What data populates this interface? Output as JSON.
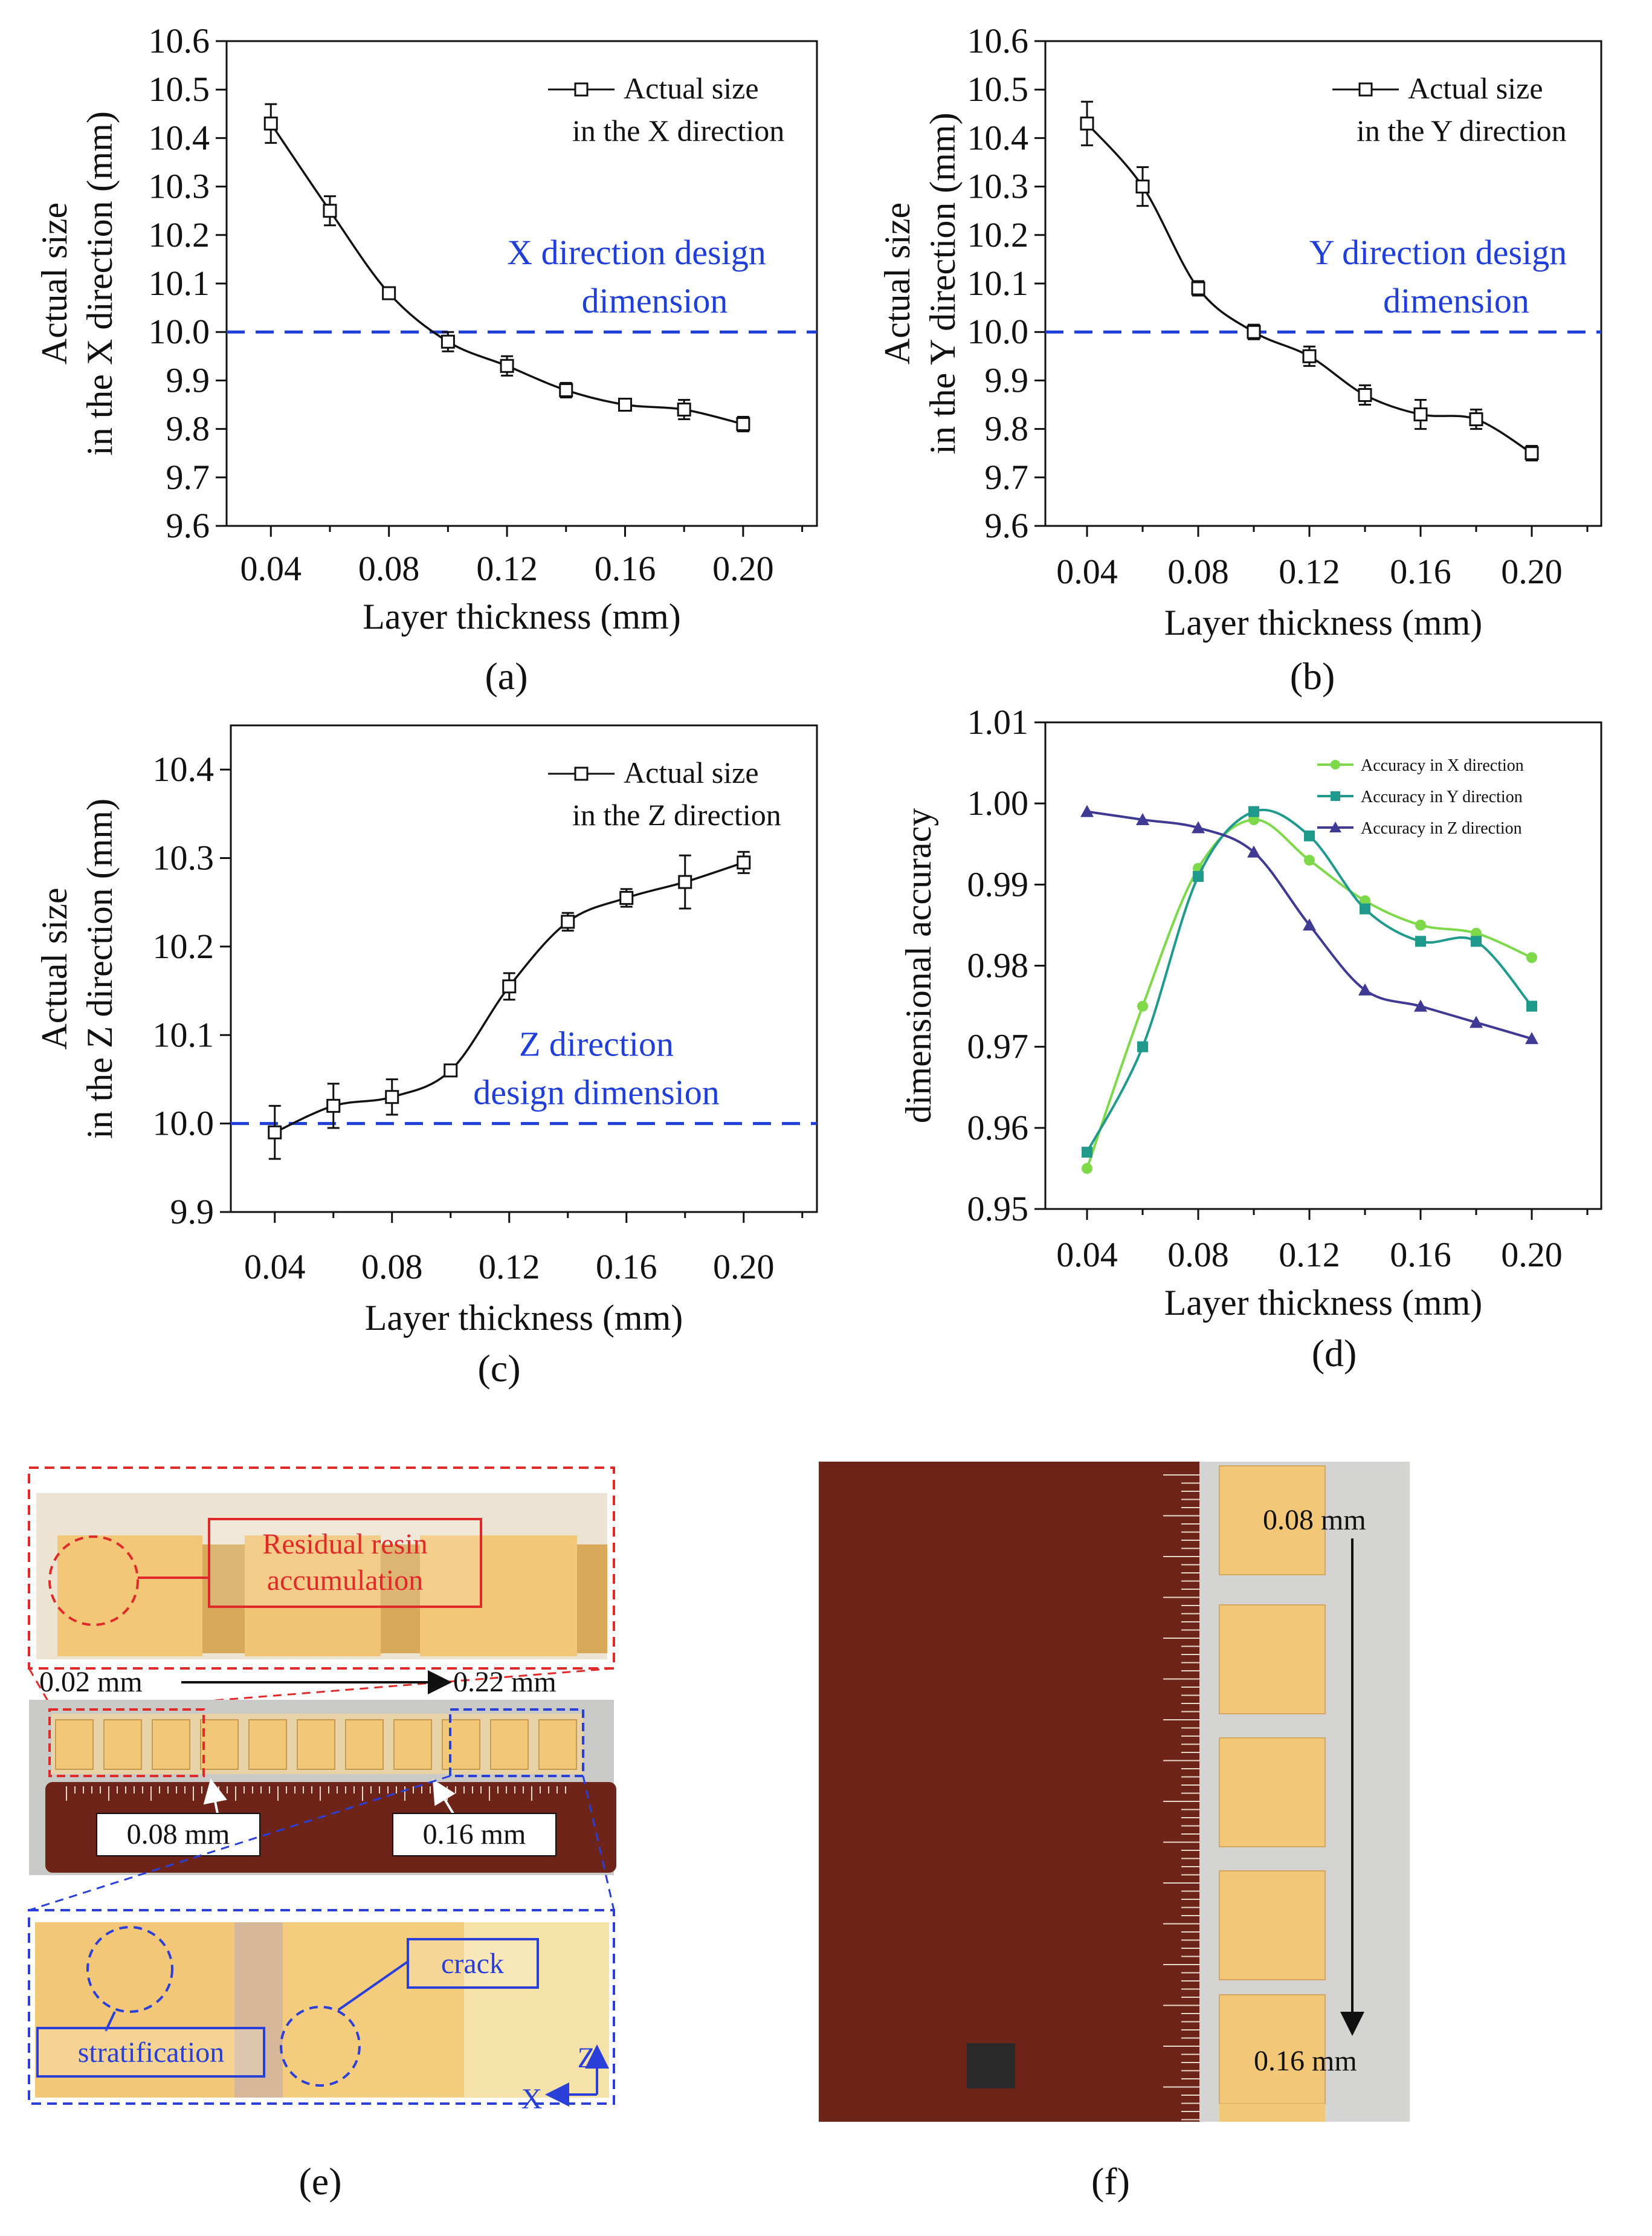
{
  "colors": {
    "black": "#111111",
    "design_line": "#1f3fd8",
    "design_text": "#1f3fd8",
    "accent_red": "#e02a2a",
    "accent_blue": "#2a3fd8",
    "series_x": "#7dd94a",
    "series_y": "#1f9a8c",
    "series_z": "#3f3a94",
    "wood": "#6e2418",
    "sample": "#f2c878"
  },
  "chart_data": [
    {
      "id": "a",
      "type": "line",
      "panel_label": "(a)",
      "xlabel": "Layer thickness (mm)",
      "ylabel_line1": "Actual size",
      "ylabel_line2": "in the X direction (mm)",
      "xlim": [
        0.025,
        0.225
      ],
      "ylim": [
        9.6,
        10.6
      ],
      "xticks": [
        "0.04",
        "0.08",
        "0.12",
        "0.16",
        "0.20"
      ],
      "yticks": [
        "9.6",
        "9.7",
        "9.8",
        "9.9",
        "10.0",
        "10.1",
        "10.2",
        "10.3",
        "10.4",
        "10.5",
        "10.6"
      ],
      "legend_line1": "Actual size",
      "legend_line2": "in the X direction",
      "design_value": 10.0,
      "design_line1": "X direction design",
      "design_line2": "dimension",
      "series": [
        {
          "x": [
            0.04,
            0.06,
            0.08,
            0.1,
            0.12,
            0.14,
            0.16,
            0.18,
            0.2
          ],
          "y": [
            10.43,
            10.25,
            10.08,
            9.98,
            9.93,
            9.88,
            9.85,
            9.84,
            9.81
          ],
          "err": [
            0.04,
            0.03,
            0.01,
            0.02,
            0.02,
            0.015,
            0.01,
            0.02,
            0.015
          ]
        }
      ]
    },
    {
      "id": "b",
      "type": "line",
      "panel_label": "(b)",
      "xlabel": "Layer thickness (mm)",
      "ylabel_line1": "Actual size",
      "ylabel_line2": "in the Y direction (mm)",
      "xlim": [
        0.025,
        0.225
      ],
      "ylim": [
        9.6,
        10.6
      ],
      "xticks": [
        "0.04",
        "0.08",
        "0.12",
        "0.16",
        "0.20"
      ],
      "yticks": [
        "9.6",
        "9.7",
        "9.8",
        "9.9",
        "10.0",
        "10.1",
        "10.2",
        "10.3",
        "10.4",
        "10.5",
        "10.6"
      ],
      "legend_line1": "Actual size",
      "legend_line2": "in the Y direction",
      "design_value": 10.0,
      "design_line1": "Y direction design",
      "design_line2": "dimension",
      "series": [
        {
          "x": [
            0.04,
            0.06,
            0.08,
            0.1,
            0.12,
            0.14,
            0.16,
            0.18,
            0.2
          ],
          "y": [
            10.43,
            10.3,
            10.09,
            10.0,
            9.95,
            9.87,
            9.83,
            9.82,
            9.75
          ],
          "err": [
            0.045,
            0.04,
            0.015,
            0.015,
            0.02,
            0.02,
            0.03,
            0.02,
            0.015
          ]
        }
      ]
    },
    {
      "id": "c",
      "type": "line",
      "panel_label": "(c)",
      "xlabel": "Layer thickness (mm)",
      "ylabel_line1": "Actual size",
      "ylabel_line2": "in the Z direction (mm)",
      "xlim": [
        0.025,
        0.225
      ],
      "ylim": [
        9.9,
        10.45
      ],
      "xticks": [
        "0.04",
        "0.08",
        "0.12",
        "0.16",
        "0.20"
      ],
      "yticks": [
        "9.9",
        "10.0",
        "10.1",
        "10.2",
        "10.3",
        "10.4"
      ],
      "legend_line1": "Actual size",
      "legend_line2": "in the Z direction",
      "design_value": 10.0,
      "design_line1": "Z direction",
      "design_line2": "design dimension",
      "series": [
        {
          "x": [
            0.04,
            0.06,
            0.08,
            0.1,
            0.12,
            0.14,
            0.16,
            0.18,
            0.2
          ],
          "y": [
            9.99,
            10.02,
            10.03,
            10.06,
            10.155,
            10.228,
            10.255,
            10.273,
            10.295
          ],
          "err": [
            0.03,
            0.025,
            0.02,
            0.005,
            0.015,
            0.01,
            0.01,
            0.03,
            0.012
          ]
        }
      ]
    },
    {
      "id": "d",
      "type": "line",
      "panel_label": "(d)",
      "xlabel": "Layer thickness (mm)",
      "ylabel": "dimensional accuracy",
      "xlim": [
        0.025,
        0.225
      ],
      "ylim": [
        0.95,
        1.01
      ],
      "xticks": [
        "0.04",
        "0.08",
        "0.12",
        "0.16",
        "0.20"
      ],
      "yticks": [
        "0.95",
        "0.96",
        "0.97",
        "0.98",
        "0.99",
        "1.00",
        "1.01"
      ],
      "series": [
        {
          "name": "Accuracy in X direction",
          "color": "#7dd94a",
          "marker": "circle",
          "x": [
            0.04,
            0.06,
            0.08,
            0.1,
            0.12,
            0.14,
            0.16,
            0.18,
            0.2
          ],
          "y": [
            0.955,
            0.975,
            0.992,
            0.998,
            0.993,
            0.988,
            0.985,
            0.984,
            0.981
          ]
        },
        {
          "name": "Accuracy in Y direction",
          "color": "#1f9a8c",
          "marker": "square",
          "x": [
            0.04,
            0.06,
            0.08,
            0.1,
            0.12,
            0.14,
            0.16,
            0.18,
            0.2
          ],
          "y": [
            0.957,
            0.97,
            0.991,
            0.999,
            0.996,
            0.987,
            0.983,
            0.983,
            0.975
          ]
        },
        {
          "name": "Accuracy in Z direction",
          "color": "#3f3a94",
          "marker": "triangle",
          "x": [
            0.04,
            0.06,
            0.08,
            0.1,
            0.12,
            0.14,
            0.16,
            0.18,
            0.2
          ],
          "y": [
            0.999,
            0.998,
            0.997,
            0.994,
            0.985,
            0.977,
            0.975,
            0.973,
            0.971
          ]
        }
      ]
    }
  ],
  "photos": {
    "e": {
      "panel_label": "(e)",
      "residual_line1": "Residual resin",
      "residual_line2": "accumulation",
      "range_start": "0.02 mm",
      "range_end": "0.22 mm",
      "callout_a": "0.08 mm",
      "callout_b": "0.16 mm",
      "stratification": "stratification",
      "crack": "crack",
      "axis_z": "Z",
      "axis_x": "X"
    },
    "f": {
      "panel_label": "(f)",
      "top_label": "0.08 mm",
      "bottom_label": "0.16 mm"
    }
  }
}
